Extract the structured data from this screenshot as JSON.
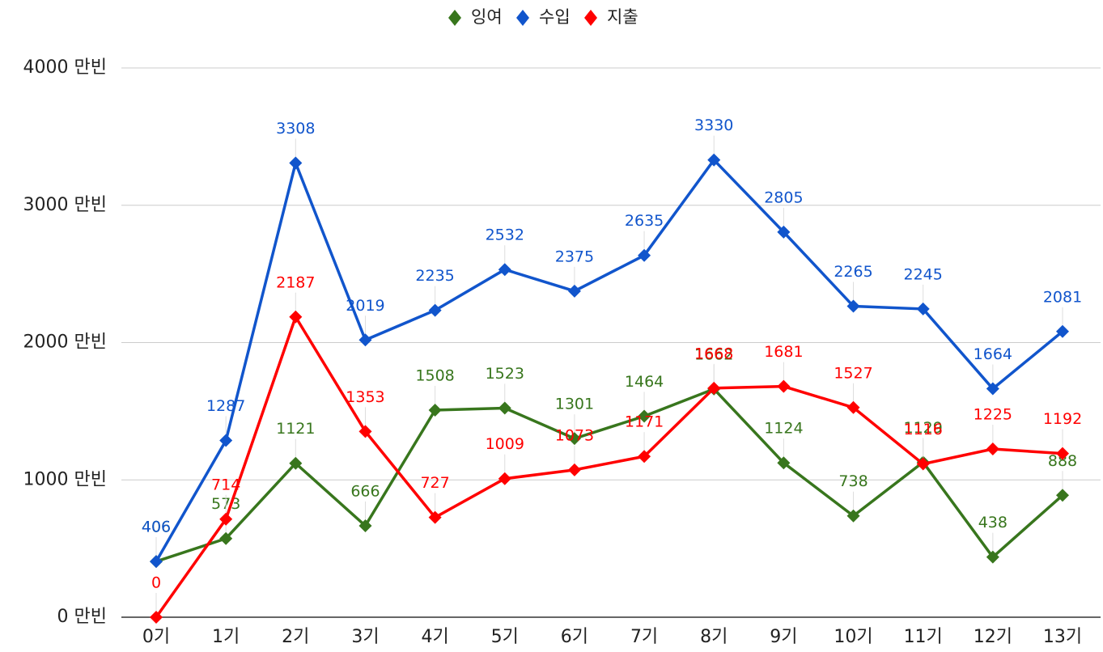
{
  "chart_data": {
    "type": "line",
    "categories": [
      "0기",
      "1기",
      "2기",
      "3기",
      "4기",
      "5기",
      "6기",
      "7기",
      "8기",
      "9기",
      "10기",
      "11기",
      "12기",
      "13기"
    ],
    "series": [
      {
        "name": "잉여",
        "color": "#38761d",
        "values": [
          406,
          573,
          1121,
          666,
          1508,
          1523,
          1301,
          1464,
          1662,
          1124,
          738,
          1129,
          438,
          888
        ]
      },
      {
        "name": "수입",
        "color": "#1155cc",
        "values": [
          406,
          1287,
          3308,
          2019,
          2235,
          2532,
          2375,
          2635,
          3330,
          2805,
          2265,
          2245,
          1664,
          2081
        ]
      },
      {
        "name": "지출",
        "color": "#ff0000",
        "values": [
          0,
          714,
          2187,
          1353,
          727,
          1009,
          1073,
          1171,
          1668,
          1681,
          1527,
          1116,
          1225,
          1192
        ]
      }
    ],
    "ylim": [
      0,
      4000
    ],
    "yticks": [
      {
        "value": 0,
        "label": "0 만빈"
      },
      {
        "value": 1000,
        "label": "1000 만빈"
      },
      {
        "value": 2000,
        "label": "2000 만빈"
      },
      {
        "value": 3000,
        "label": "3000 만빈"
      },
      {
        "value": 4000,
        "label": "4000 만빈"
      }
    ],
    "grid": true,
    "legend": "top"
  }
}
